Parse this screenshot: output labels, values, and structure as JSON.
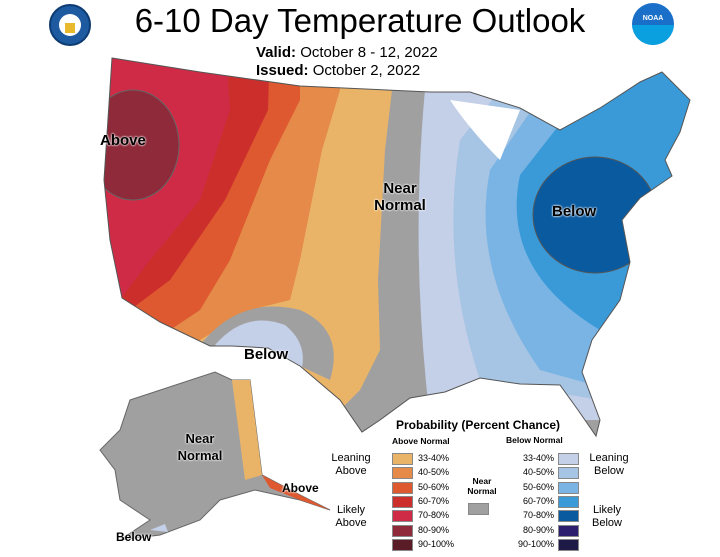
{
  "header": {
    "title": "6-10 Day Temperature Outlook",
    "valid_label": "Valid:",
    "valid_value": "October 8 - 12, 2022",
    "issued_label": "Issued:",
    "issued_value": "October 2, 2022"
  },
  "logos": {
    "left": "commerce-seal",
    "right": "NOAA"
  },
  "map_labels": {
    "above_west": "Above",
    "near_normal": "Near Normal",
    "below_east": "Below",
    "below_southwest": "Below",
    "alaska_near": "Near Normal",
    "alaska_above": "Above",
    "alaska_below": "Below"
  },
  "legend": {
    "title": "Probability (Percent Chance)",
    "above_header": "Above Normal",
    "below_header": "Below Normal",
    "leaning_above": "Leaning Above",
    "likely_above": "Likely Above",
    "leaning_below": "Leaning Below",
    "likely_below": "Likely Below",
    "near_normal": "Near Normal",
    "near_color": "#a0a0a0",
    "above": [
      {
        "range": "33-40%",
        "color": "#eab468"
      },
      {
        "range": "40-50%",
        "color": "#e58a48"
      },
      {
        "range": "50-60%",
        "color": "#de5830"
      },
      {
        "range": "60-70%",
        "color": "#cc2e2c"
      },
      {
        "range": "70-80%",
        "color": "#cf2a46"
      },
      {
        "range": "80-90%",
        "color": "#8e2a3a"
      },
      {
        "range": "90-100%",
        "color": "#5a1c26"
      }
    ],
    "below": [
      {
        "range": "33-40%",
        "color": "#c4cfe8"
      },
      {
        "range": "40-50%",
        "color": "#a6c4e4"
      },
      {
        "range": "50-60%",
        "color": "#79b4e4"
      },
      {
        "range": "60-70%",
        "color": "#3a9ad8"
      },
      {
        "range": "70-80%",
        "color": "#0a5aa0"
      },
      {
        "range": "80-90%",
        "color": "#2e1f6e"
      },
      {
        "range": "90-100%",
        "color": "#1e1a48"
      }
    ]
  }
}
